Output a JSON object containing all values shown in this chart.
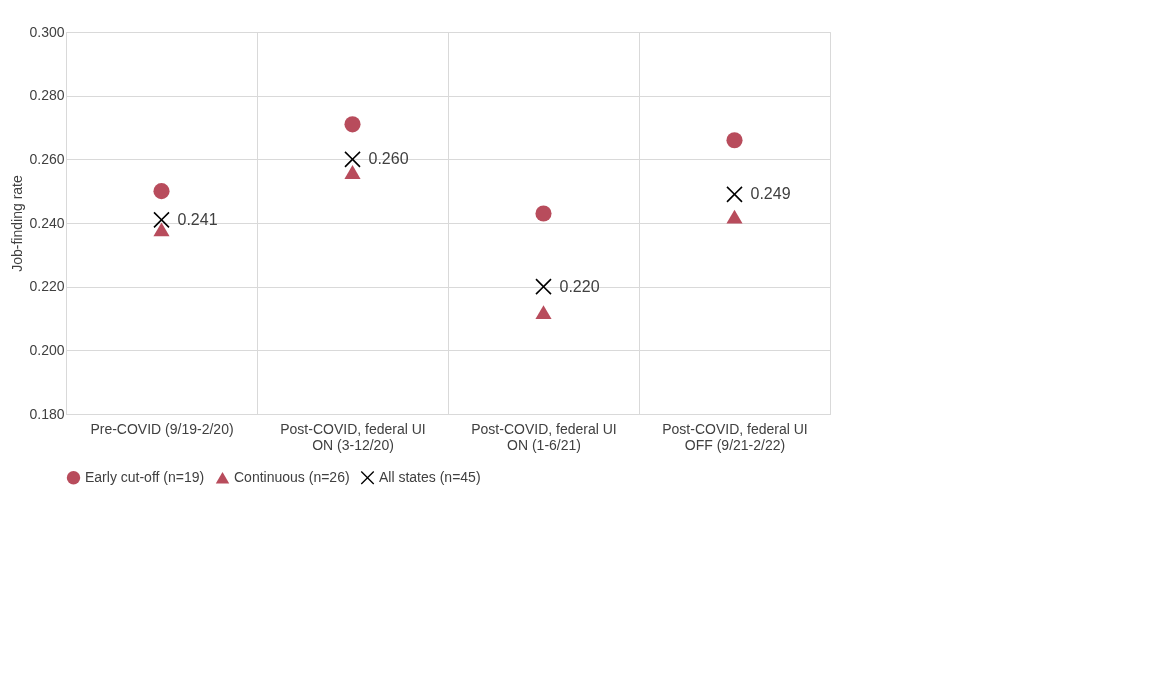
{
  "chart_data": {
    "type": "scatter",
    "ylabel": "Job-finding rate",
    "categories": [
      "Pre-COVID (9/19-2/20)",
      "Post-COVID, federal UI ON (3-12/20)",
      "Post-COVID, federal UI ON (1-6/21)",
      "Post-COVID, federal UI OFF (9/21-2/22)"
    ],
    "series": [
      {
        "name": "Early cut-off (n=19)",
        "color": "#b84c5c",
        "marker": "circle",
        "values": [
          0.25,
          0.271,
          0.243,
          0.266
        ]
      },
      {
        "name": "Continuous (n=26)",
        "color": "#b84c5c",
        "marker": "triangle",
        "values": [
          0.238,
          0.256,
          0.212,
          0.242
        ]
      },
      {
        "name": "All states (n=45)",
        "color": "#000000",
        "marker": "cross",
        "values": [
          0.241,
          0.26,
          0.22,
          0.249
        ],
        "value_labels": [
          "0.241",
          "0.260",
          "0.220",
          "0.249"
        ]
      }
    ],
    "ylim": [
      0.18,
      0.3
    ],
    "yticks": [
      {
        "value": 0.18,
        "label": "0.180"
      },
      {
        "value": 0.2,
        "label": "0.200"
      },
      {
        "value": 0.22,
        "label": "0.220"
      },
      {
        "value": 0.24,
        "label": "0.240"
      },
      {
        "value": 0.26,
        "label": "0.260"
      },
      {
        "value": 0.28,
        "label": "0.280"
      },
      {
        "value": 0.3,
        "label": "0.300"
      }
    ],
    "grid": true,
    "legend": "bottom"
  }
}
